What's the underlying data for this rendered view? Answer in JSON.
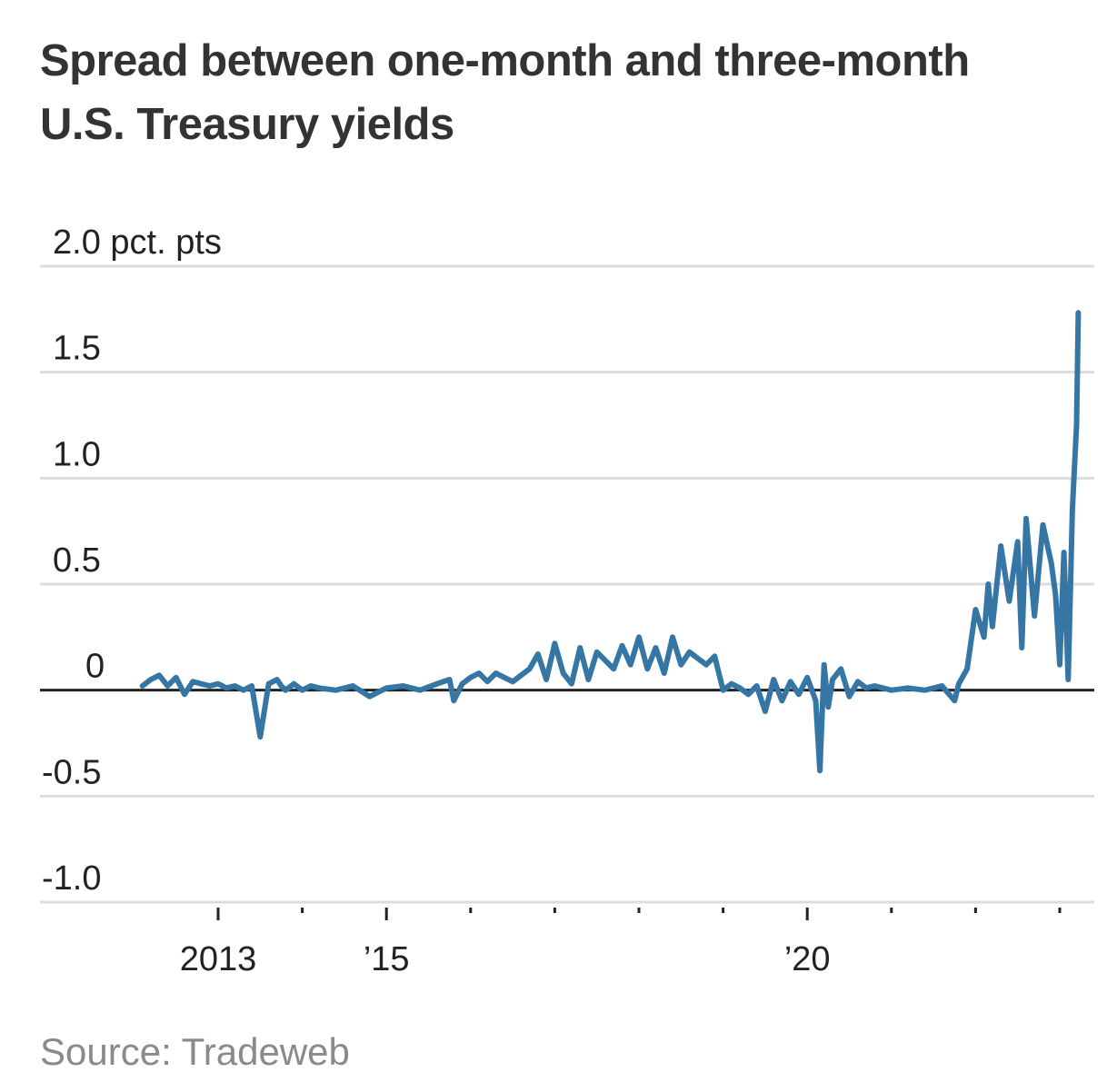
{
  "title": "Spread between one-month and three-month U.S. Treasury yields",
  "source": "Source: Tradeweb",
  "colors": {
    "series": "#3576a5",
    "grid": "#dcdcdc",
    "zero_line": "#222222",
    "text": "#333333"
  },
  "chart_data": {
    "type": "line",
    "title": "Spread between one-month and three-month U.S. Treasury yields",
    "xlabel": "",
    "ylabel": "",
    "ylim": [
      -1.0,
      2.0
    ],
    "y_ticks": [
      {
        "value": 2.0,
        "label": "2.0 pct. pts"
      },
      {
        "value": 1.5,
        "label": "1.5"
      },
      {
        "value": 1.0,
        "label": "1.0"
      },
      {
        "value": 0.5,
        "label": "0.5"
      },
      {
        "value": 0,
        "label": "0"
      },
      {
        "value": -0.5,
        "label": "-0.5"
      },
      {
        "value": -1.0,
        "label": "-1.0"
      }
    ],
    "xlim": [
      2011.75,
      2023.25
    ],
    "x_ticks": [
      {
        "value": 2013,
        "label": "2013"
      },
      {
        "value": 2014,
        "label": ""
      },
      {
        "value": 2015,
        "label": "’15"
      },
      {
        "value": 2016,
        "label": ""
      },
      {
        "value": 2017,
        "label": ""
      },
      {
        "value": 2018,
        "label": ""
      },
      {
        "value": 2019,
        "label": ""
      },
      {
        "value": 2020,
        "label": "’20"
      },
      {
        "value": 2021,
        "label": ""
      },
      {
        "value": 2022,
        "label": ""
      },
      {
        "value": 2023,
        "label": ""
      }
    ],
    "grid": true,
    "series": [
      {
        "x": [
          2012.1,
          2012.2,
          2012.3,
          2012.4,
          2012.5,
          2012.6,
          2012.7,
          2012.8,
          2012.9,
          2013.0,
          2013.1,
          2013.2,
          2013.3,
          2013.4,
          2013.5,
          2013.6,
          2013.7,
          2013.75,
          2013.8,
          2013.9,
          2014.0,
          2014.1,
          2014.2,
          2014.4,
          2014.6,
          2014.8,
          2015.0,
          2015.2,
          2015.4,
          2015.6,
          2015.75,
          2015.8,
          2015.9,
          2016.0,
          2016.1,
          2016.2,
          2016.3,
          2016.4,
          2016.5,
          2016.6,
          2016.7,
          2016.8,
          2016.9,
          2017.0,
          2017.1,
          2017.2,
          2017.3,
          2017.4,
          2017.5,
          2017.6,
          2017.7,
          2017.8,
          2017.9,
          2018.0,
          2018.1,
          2018.2,
          2018.3,
          2018.4,
          2018.5,
          2018.6,
          2018.7,
          2018.8,
          2018.9,
          2019.0,
          2019.1,
          2019.2,
          2019.3,
          2019.4,
          2019.5,
          2019.6,
          2019.7,
          2019.8,
          2019.9,
          2020.0,
          2020.1,
          2020.15,
          2020.2,
          2020.25,
          2020.3,
          2020.4,
          2020.5,
          2020.6,
          2020.7,
          2020.8,
          2021.0,
          2021.2,
          2021.4,
          2021.6,
          2021.75,
          2021.8,
          2021.9,
          2022.0,
          2022.1,
          2022.15,
          2022.2,
          2022.3,
          2022.4,
          2022.5,
          2022.55,
          2022.6,
          2022.7,
          2022.8,
          2022.9,
          2022.95,
          2023.0,
          2023.05,
          2023.1,
          2023.15,
          2023.2,
          2023.22
        ],
        "y": [
          0.02,
          0.05,
          0.07,
          0.02,
          0.06,
          -0.02,
          0.04,
          0.03,
          0.02,
          0.03,
          0.01,
          0.02,
          0.0,
          0.02,
          -0.22,
          0.03,
          0.05,
          0.02,
          0.0,
          0.03,
          0.0,
          0.02,
          0.01,
          0.0,
          0.02,
          -0.03,
          0.01,
          0.02,
          0.0,
          0.03,
          0.05,
          -0.05,
          0.03,
          0.06,
          0.08,
          0.04,
          0.08,
          0.06,
          0.04,
          0.07,
          0.1,
          0.17,
          0.05,
          0.22,
          0.08,
          0.03,
          0.2,
          0.05,
          0.18,
          0.14,
          0.1,
          0.21,
          0.12,
          0.25,
          0.1,
          0.2,
          0.08,
          0.25,
          0.12,
          0.18,
          0.15,
          0.12,
          0.16,
          0.0,
          0.03,
          0.01,
          -0.02,
          0.02,
          -0.1,
          0.05,
          -0.05,
          0.04,
          -0.02,
          0.06,
          -0.05,
          -0.38,
          0.12,
          -0.08,
          0.05,
          0.1,
          -0.03,
          0.04,
          0.01,
          0.02,
          0.0,
          0.01,
          0.0,
          0.02,
          -0.05,
          0.03,
          0.1,
          0.38,
          0.25,
          0.5,
          0.3,
          0.68,
          0.42,
          0.7,
          0.2,
          0.81,
          0.35,
          0.78,
          0.6,
          0.45,
          0.12,
          0.65,
          0.05,
          0.85,
          1.25,
          1.78
        ]
      }
    ]
  }
}
